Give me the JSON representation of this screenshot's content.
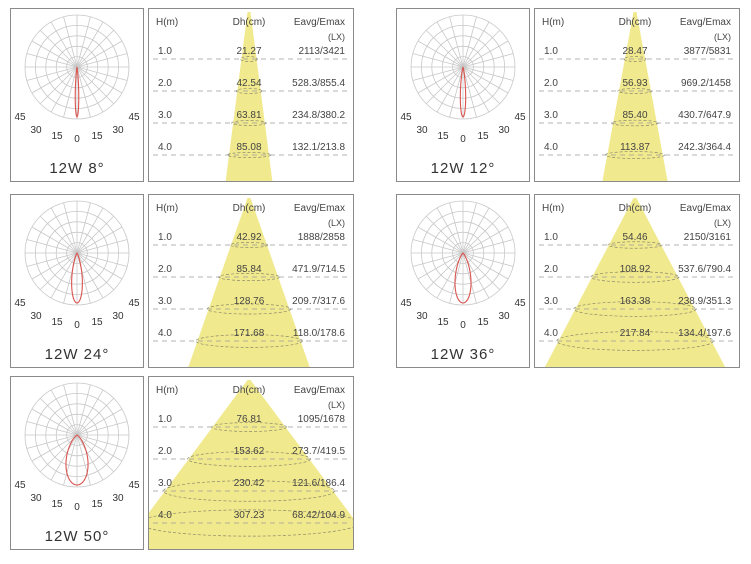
{
  "panels": [
    {
      "label": "12W 8°",
      "beam_angle_deg": 8,
      "headers": {
        "h": "H(m)",
        "dh": "Dh(cm)",
        "e": "Eavg/Emax",
        "unit": "(LX)"
      },
      "rows": [
        {
          "h": "1.0",
          "dh": "21.27",
          "e": "2113/3421"
        },
        {
          "h": "2.0",
          "dh": "42.54",
          "e": "528.3/855.4"
        },
        {
          "h": "3.0",
          "dh": "63.81",
          "e": "234.8/380.2"
        },
        {
          "h": "4.0",
          "dh": "85.08",
          "e": "132.1/213.8"
        }
      ]
    },
    {
      "label": "12W 12°",
      "beam_angle_deg": 12,
      "headers": {
        "h": "H(m)",
        "dh": "Dh(cm)",
        "e": "Eavg/Emax",
        "unit": "(LX)"
      },
      "rows": [
        {
          "h": "1.0",
          "dh": "28.47",
          "e": "3877/5831"
        },
        {
          "h": "2.0",
          "dh": "56.93",
          "e": "969.2/1458"
        },
        {
          "h": "3.0",
          "dh": "85.40",
          "e": "430.7/647.9"
        },
        {
          "h": "4.0",
          "dh": "113.87",
          "e": "242.3/364.4"
        }
      ]
    },
    {
      "label": "12W 24°",
      "beam_angle_deg": 24,
      "headers": {
        "h": "H(m)",
        "dh": "Dh(cm)",
        "e": "Eavg/Emax",
        "unit": "(LX)"
      },
      "rows": [
        {
          "h": "1.0",
          "dh": "42.92",
          "e": "1888/2858"
        },
        {
          "h": "2.0",
          "dh": "85.84",
          "e": "471.9/714.5"
        },
        {
          "h": "3.0",
          "dh": "128.76",
          "e": "209.7/317.6"
        },
        {
          "h": "4.0",
          "dh": "171.68",
          "e": "118.0/178.6"
        }
      ]
    },
    {
      "label": "12W 36°",
      "beam_angle_deg": 36,
      "headers": {
        "h": "H(m)",
        "dh": "Dh(cm)",
        "e": "Eavg/Emax",
        "unit": "(LX)"
      },
      "rows": [
        {
          "h": "1.0",
          "dh": "54.46",
          "e": "2150/3161"
        },
        {
          "h": "2.0",
          "dh": "108.92",
          "e": "537.6/790.4"
        },
        {
          "h": "3.0",
          "dh": "163.38",
          "e": "238.9/351.3"
        },
        {
          "h": "4.0",
          "dh": "217.84",
          "e": "134.4/197.6"
        }
      ]
    },
    {
      "label": "12W 50°",
      "beam_angle_deg": 50,
      "headers": {
        "h": "H(m)",
        "dh": "Dh(cm)",
        "e": "Eavg/Emax",
        "unit": "(LX)"
      },
      "rows": [
        {
          "h": "1.0",
          "dh": "76.81",
          "e": "1095/1678"
        },
        {
          "h": "2.0",
          "dh": "153.62",
          "e": "273.7/419.5"
        },
        {
          "h": "3.0",
          "dh": "230.42",
          "e": "121.6/186.4"
        },
        {
          "h": "4.0",
          "dh": "307.23",
          "e": "68.42/104.9"
        }
      ]
    }
  ],
  "polar_angle_labels": {
    "left": [
      "45",
      "30",
      "15"
    ],
    "center": "0",
    "right": [
      "15",
      "30",
      "45"
    ]
  },
  "colors": {
    "beam": "#f1e98e",
    "curve": "#d9534f",
    "grid": "#c8c8c8",
    "dash": "#9a9a9a",
    "border": "#8a8a8a"
  }
}
